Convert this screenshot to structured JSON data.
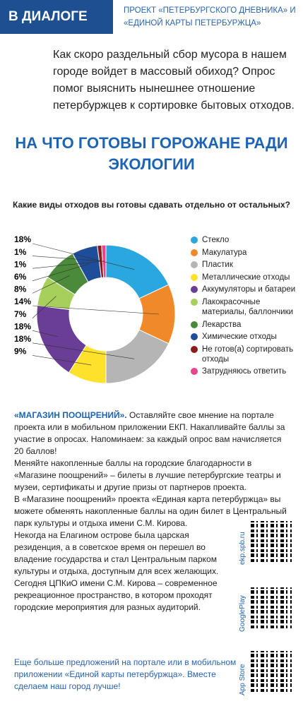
{
  "header": {
    "label": "В ДИАЛОГЕ",
    "project": "ПРОЕКТ «ПЕТЕРБУРГСКОГО ДНЕВНИКА» И «ЕДИНОЙ КАРТЫ ПЕТЕРБУРЖЦА»"
  },
  "intro": "Как скоро раздельный сбор мусора в нашем городе войдет в массовый обиход? Опрос помог выяснить нынешнее отношение петербуржцев к сортировке бытовых отходов.",
  "headline": "НА ЧТО ГОТОВЫ ГОРОЖАНЕ РАДИ ЭКОЛОГИИ",
  "chart_data": {
    "type": "pie",
    "title": "Какие виды отходов вы готовы сдавать отдельно от остальных?",
    "categories": [
      "Стекло",
      "Макулатура",
      "Пластик",
      "Металлические отходы",
      "Аккумуляторы и батареи",
      "Лакокрасочные материалы, баллончики",
      "Лекарства",
      "Химические отходы",
      "Не готов(а) сортировать отходы",
      "Затрудняюсь ответить"
    ],
    "values": [
      18,
      14,
      18,
      9,
      18,
      7,
      8,
      6,
      1,
      1
    ],
    "value_labels": [
      "18%",
      "14%",
      "18%",
      "9%",
      "18%",
      "7%",
      "8%",
      "6%",
      "1%",
      "1%"
    ],
    "colors": [
      "#2aa7df",
      "#f0892a",
      "#b5b5b5",
      "#fde12a",
      "#6a3d96",
      "#a6cf5b",
      "#4c8a3b",
      "#1e4d9a",
      "#8e1b1b",
      "#e8448f"
    ],
    "legend": "right"
  },
  "promo": {
    "lead": "«МАГАЗИН ПООЩРЕНИЙ».",
    "p1": "Оставляйте свое мнение на портале проекта или в мобильном приложении ЕКП. Накапливайте баллы за участие в опросах. Напоминаем: за каждый опрос вам начисляется 20 баллов!",
    "p2": "Меняйте накопленные баллы на городские благодарности в «Магазине поощрений» – билеты в лучшие петербургские театры и музеи, сертификаты и другие призы от партнеров проекта.",
    "p3": "В «Магазине поощрений» проекта «Единая карта петербуржца» вы можете обменять накопленные баллы на один билет в Центральный парк культуры и отдыха имени С.М. Кирова.",
    "p4": "Некогда на Елагином острове была царская резиденция, а в советское время он перешел во владение государства и стал Центральным парком культуры и отдыха, доступным для всех желающих.",
    "p5": "Сегодня ЦПКиО имени С.М. Кирова – современное рекреационное пространство, в котором проходят городские мероприятия для разных аудиторий."
  },
  "qr": [
    "ekp.spb.ru",
    "GooglePlay",
    "App Store"
  ],
  "footer": "Еще больше предложений на портале или в мобильном приложении «Единой карты петербуржца». Вместе сделаем наш город лучше!"
}
